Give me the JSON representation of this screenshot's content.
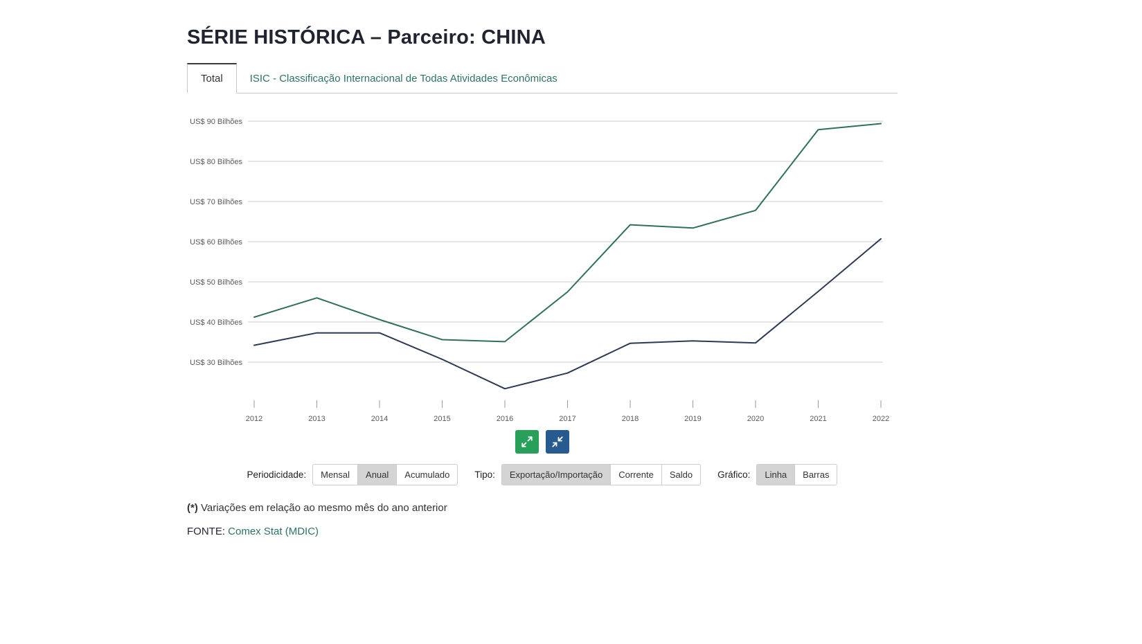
{
  "page": {
    "title": "SÉRIE HISTÓRICA – Parceiro: CHINA",
    "footnote_marker": "(*)",
    "footnote_text": "Variações em relação ao mesmo mês do ano anterior",
    "fonte_label": "FONTE:",
    "fonte_link": "Comex Stat (MDIC)"
  },
  "tabs": {
    "total": {
      "label": "Total",
      "active": true
    },
    "isic": {
      "label": "ISIC - Classificação Internacional de Todas Atividades Econômicas",
      "active": false
    }
  },
  "chart_data": {
    "type": "line",
    "title": "",
    "xlabel": "",
    "ylabel": "",
    "x": [
      2012,
      2013,
      2014,
      2015,
      2016,
      2017,
      2018,
      2019,
      2020,
      2021,
      2022
    ],
    "series": [
      {
        "name": "Exportação",
        "color": "#2e7154",
        "values": [
          41.2,
          46.0,
          40.6,
          35.6,
          35.1,
          47.5,
          64.2,
          63.4,
          67.8,
          87.9,
          89.4
        ]
      },
      {
        "name": "Importação",
        "color": "#2c3a52",
        "values": [
          34.2,
          37.3,
          37.3,
          30.7,
          23.4,
          27.3,
          34.7,
          35.3,
          34.8,
          47.6,
          60.7
        ]
      }
    ],
    "yticks": [
      90,
      80,
      70,
      60,
      50,
      40,
      30
    ],
    "ytick_labels": [
      "US$ 90 Bilhões",
      "US$ 80 Bilhões",
      "US$ 70 Bilhões",
      "US$ 60 Bilhões",
      "US$ 50 Bilhões",
      "US$ 40 Bilhões",
      "US$ 30 Bilhões"
    ],
    "ylim": [
      30,
      90
    ],
    "grid": true,
    "legend_position": "none",
    "unit": "US$ Bilhões"
  },
  "zoom_controls": {
    "expand_icon": "expand-arrows",
    "collapse_icon": "collapse-arrows",
    "expand_color": "#28a05a",
    "collapse_color": "#275a8e"
  },
  "controls": {
    "periodicidade": {
      "label": "Periodicidade:",
      "options": [
        {
          "label": "Mensal",
          "selected": false
        },
        {
          "label": "Anual",
          "selected": true
        },
        {
          "label": "Acumulado",
          "selected": false
        }
      ]
    },
    "tipo": {
      "label": "Tipo:",
      "options": [
        {
          "label": "Exportação/Importação",
          "selected": true
        },
        {
          "label": "Corrente",
          "selected": false
        },
        {
          "label": "Saldo",
          "selected": false
        }
      ]
    },
    "grafico": {
      "label": "Gráfico:",
      "options": [
        {
          "label": "Linha",
          "selected": true
        },
        {
          "label": "Barras",
          "selected": false
        }
      ]
    }
  }
}
